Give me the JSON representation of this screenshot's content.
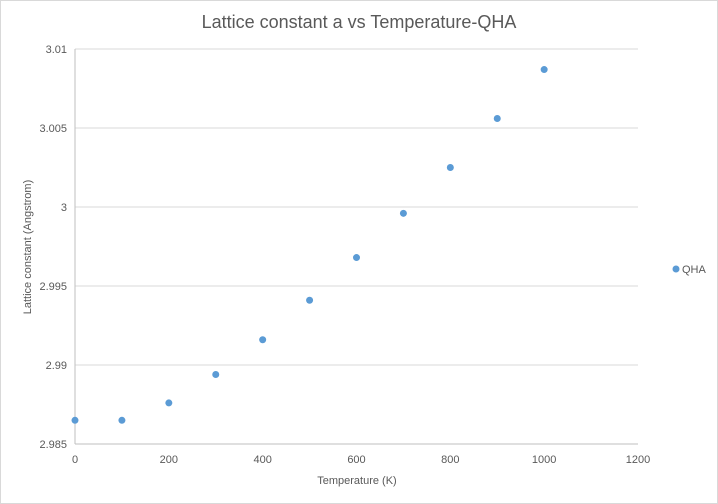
{
  "chart_data": {
    "type": "scatter",
    "title": "Lattice constant a vs Temperature-QHA",
    "xlabel": "Temperature  (K)",
    "ylabel": "Lattice constant (Angstrom)",
    "xlim": [
      0,
      1200
    ],
    "ylim": [
      2.985,
      3.01
    ],
    "xticks": [
      "0",
      "200",
      "400",
      "600",
      "800",
      "1000",
      "1200"
    ],
    "yticks": [
      "2.985",
      "2.99",
      "2.995",
      "3",
      "3.005",
      "3.01"
    ],
    "grid": "horizontal",
    "legend_position": "right",
    "series": [
      {
        "name": "QHA",
        "color": "#5B9BD5",
        "x": [
          0,
          100,
          200,
          300,
          400,
          500,
          600,
          700,
          800,
          900,
          1000
        ],
        "y": [
          2.9865,
          2.9865,
          2.9876,
          2.9894,
          2.9916,
          2.9941,
          2.9968,
          2.9996,
          3.0025,
          3.0056,
          3.0087
        ]
      }
    ]
  }
}
